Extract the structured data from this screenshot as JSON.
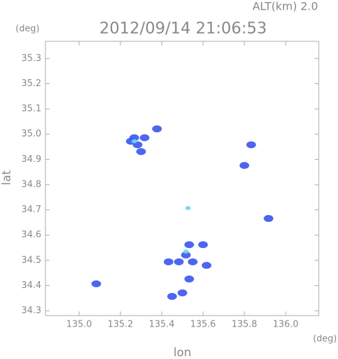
{
  "chart_data": {
    "type": "scatter",
    "title": "2012/09/14 21:06:53",
    "altitude_label": "ALT(km)  2.0",
    "x_unit": "(deg)",
    "y_unit": "(deg)",
    "xlabel": "lon",
    "ylabel": "lat",
    "xlim": [
      134.837,
      136.16
    ],
    "ylim": [
      34.281,
      35.368
    ],
    "xticks": [
      {
        "value": 135.0,
        "label": "135.0"
      },
      135.2,
      135.4,
      135.6,
      135.8,
      {
        "value": 136.0,
        "label": "136.0"
      }
    ],
    "yticks": [
      34.3,
      34.4,
      34.5,
      34.6,
      34.7,
      34.8,
      34.9,
      {
        "value": 35.0,
        "label": "35.0"
      },
      35.1,
      35.2,
      35.3
    ],
    "series": [
      {
        "color": "#3a55ee",
        "x": [
          135.25,
          135.283,
          135.3,
          135.267,
          135.317,
          135.377,
          135.533,
          135.517,
          135.483,
          135.55,
          135.533,
          135.5,
          135.45,
          135.617,
          135.6,
          135.433,
          135.917,
          135.083,
          135.8,
          135.833
        ],
        "y": [
          34.972,
          34.958,
          34.931,
          34.986,
          34.986,
          35.021,
          34.562,
          34.521,
          34.494,
          34.494,
          34.426,
          34.371,
          34.357,
          34.48,
          34.562,
          34.494,
          34.666,
          34.407,
          34.876,
          34.958
        ]
      },
      {
        "color": "#66dde8",
        "x": [
          135.517,
          135.267,
          135.527
        ],
        "y": [
          34.535,
          34.972,
          34.707
        ]
      }
    ]
  }
}
